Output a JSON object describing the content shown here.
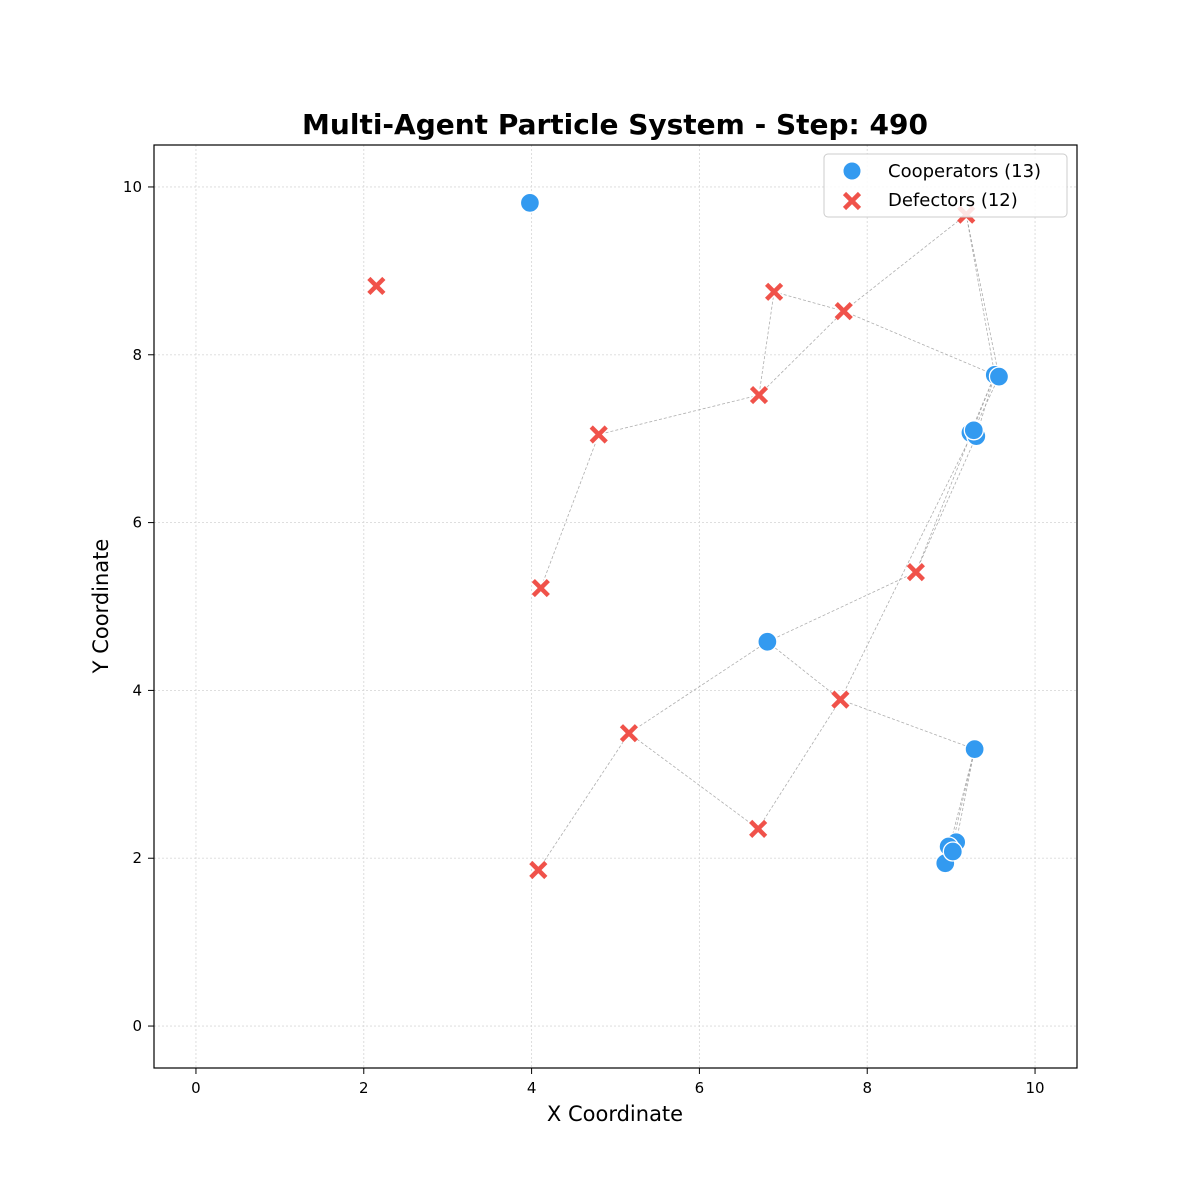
{
  "chart_data": {
    "type": "scatter",
    "title": "Multi-Agent Particle System - Step: 490",
    "xlabel": "X Coordinate",
    "ylabel": "Y Coordinate",
    "xlim": [
      -0.5,
      10.5
    ],
    "ylim": [
      -0.5,
      10.5
    ],
    "xticks": [
      "0",
      "2",
      "4",
      "6",
      "8",
      "10"
    ],
    "yticks": [
      "0",
      "2",
      "4",
      "6",
      "8",
      "10"
    ],
    "grid": true,
    "legend_position": "top-right",
    "series": [
      {
        "name": "Cooperators (13)",
        "marker": "circle",
        "color": "#339af0",
        "points": [
          {
            "x": 3.98,
            "y": 9.81
          },
          {
            "x": 9.52,
            "y": 7.76
          },
          {
            "x": 9.57,
            "y": 7.74
          },
          {
            "x": 9.23,
            "y": 7.07
          },
          {
            "x": 9.3,
            "y": 7.03
          },
          {
            "x": 9.27,
            "y": 7.1
          },
          {
            "x": 6.81,
            "y": 4.58
          },
          {
            "x": 9.28,
            "y": 3.3
          },
          {
            "x": 9.06,
            "y": 2.19
          },
          {
            "x": 9.0,
            "y": 2.1
          },
          {
            "x": 8.97,
            "y": 2.14
          },
          {
            "x": 8.93,
            "y": 1.94
          },
          {
            "x": 9.02,
            "y": 2.08
          }
        ]
      },
      {
        "name": "Defectors (12)",
        "marker": "x",
        "color": "#f0524a",
        "points": [
          {
            "x": 9.18,
            "y": 9.67
          },
          {
            "x": 2.15,
            "y": 8.82
          },
          {
            "x": 6.89,
            "y": 8.75
          },
          {
            "x": 7.72,
            "y": 8.52
          },
          {
            "x": 6.71,
            "y": 7.52
          },
          {
            "x": 4.8,
            "y": 7.05
          },
          {
            "x": 4.11,
            "y": 5.22
          },
          {
            "x": 8.58,
            "y": 5.41
          },
          {
            "x": 7.68,
            "y": 3.89
          },
          {
            "x": 5.16,
            "y": 3.49
          },
          {
            "x": 6.7,
            "y": 2.35
          },
          {
            "x": 4.08,
            "y": 1.86
          }
        ]
      }
    ],
    "links": [
      [
        [
          9.18,
          9.67
        ],
        [
          7.72,
          8.52
        ]
      ],
      [
        [
          9.18,
          9.67
        ],
        [
          9.52,
          7.76
        ]
      ],
      [
        [
          9.18,
          9.67
        ],
        [
          9.57,
          7.74
        ]
      ],
      [
        [
          7.72,
          8.52
        ],
        [
          6.71,
          7.52
        ]
      ],
      [
        [
          7.72,
          8.52
        ],
        [
          9.52,
          7.76
        ]
      ],
      [
        [
          6.89,
          8.75
        ],
        [
          7.72,
          8.52
        ]
      ],
      [
        [
          6.89,
          8.75
        ],
        [
          6.71,
          7.52
        ]
      ],
      [
        [
          6.71,
          7.52
        ],
        [
          4.8,
          7.05
        ]
      ],
      [
        [
          4.8,
          7.05
        ],
        [
          4.11,
          5.22
        ]
      ],
      [
        [
          9.52,
          7.76
        ],
        [
          9.23,
          7.07
        ]
      ],
      [
        [
          9.52,
          7.76
        ],
        [
          9.3,
          7.03
        ]
      ],
      [
        [
          9.57,
          7.74
        ],
        [
          9.27,
          7.1
        ]
      ],
      [
        [
          9.52,
          7.76
        ],
        [
          8.58,
          5.41
        ]
      ],
      [
        [
          9.3,
          7.03
        ],
        [
          8.58,
          5.41
        ]
      ],
      [
        [
          9.27,
          7.1
        ],
        [
          7.68,
          3.89
        ]
      ],
      [
        [
          8.58,
          5.41
        ],
        [
          6.81,
          4.58
        ]
      ],
      [
        [
          6.81,
          4.58
        ],
        [
          5.16,
          3.49
        ]
      ],
      [
        [
          6.81,
          4.58
        ],
        [
          7.68,
          3.89
        ]
      ],
      [
        [
          7.68,
          3.89
        ],
        [
          9.28,
          3.3
        ]
      ],
      [
        [
          7.68,
          3.89
        ],
        [
          6.7,
          2.35
        ]
      ],
      [
        [
          5.16,
          3.49
        ],
        [
          6.7,
          2.35
        ]
      ],
      [
        [
          5.16,
          3.49
        ],
        [
          4.08,
          1.86
        ]
      ],
      [
        [
          9.28,
          3.3
        ],
        [
          9.06,
          2.19
        ]
      ],
      [
        [
          9.28,
          3.3
        ],
        [
          9.0,
          2.1
        ]
      ],
      [
        [
          9.28,
          3.3
        ],
        [
          8.93,
          1.94
        ]
      ]
    ]
  }
}
